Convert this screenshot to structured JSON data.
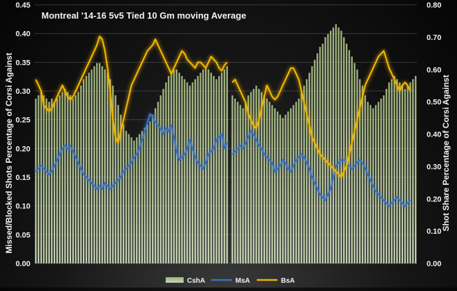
{
  "chart_data": {
    "type": "bar+line",
    "title": "Montreal '14-16 5v5 Tied 10 Gm moving Average",
    "ylabel_left": "Missed/Blocked Shots Percentage of Corsi Against",
    "ylabel_right": "Shot Share Percentage of Corsi Against",
    "ylim_left": [
      0,
      0.45
    ],
    "ylim_right": [
      0,
      0.8
    ],
    "yticks_left": [
      "0.00",
      "0.05",
      "0.10",
      "0.15",
      "0.20",
      "0.25",
      "0.30",
      "0.35",
      "0.40",
      "0.45"
    ],
    "yticks_right": [
      "0.00",
      "0.10",
      "0.20",
      "0.30",
      "0.40",
      "0.50",
      "0.60",
      "0.70",
      "0.80"
    ],
    "grid": true,
    "legend_position": "bottom",
    "season_break_index": 73,
    "series": [
      {
        "name": "CshA",
        "type": "bar",
        "axis": "right",
        "color": "#a9c48a",
        "values": [
          0.51,
          0.52,
          0.53,
          0.52,
          0.51,
          0.5,
          0.51,
          0.5,
          0.51,
          0.52,
          0.53,
          0.54,
          0.53,
          0.52,
          0.51,
          0.52,
          0.53,
          0.55,
          0.57,
          0.58,
          0.59,
          0.6,
          0.61,
          0.62,
          0.62,
          0.61,
          0.6,
          0.59,
          0.57,
          0.55,
          0.52,
          0.49,
          0.46,
          0.43,
          0.41,
          0.4,
          0.39,
          0.38,
          0.39,
          0.4,
          0.41,
          0.42,
          0.43,
          0.44,
          0.46,
          0.48,
          0.5,
          0.52,
          0.54,
          0.56,
          0.58,
          0.59,
          0.6,
          0.6,
          0.59,
          0.58,
          0.57,
          0.56,
          0.55,
          0.56,
          0.57,
          0.58,
          0.59,
          0.6,
          0.61,
          0.6,
          0.59,
          0.58,
          0.57,
          0.58,
          0.59,
          0.6,
          0.61,
          0.52,
          0.51,
          0.5,
          0.49,
          0.48,
          0.5,
          0.52,
          0.53,
          0.54,
          0.55,
          0.54,
          0.53,
          0.52,
          0.51,
          0.5,
          0.49,
          0.48,
          0.47,
          0.46,
          0.45,
          0.46,
          0.47,
          0.48,
          0.49,
          0.5,
          0.51,
          0.53,
          0.55,
          0.57,
          0.59,
          0.61,
          0.63,
          0.65,
          0.67,
          0.68,
          0.7,
          0.71,
          0.72,
          0.73,
          0.74,
          0.73,
          0.72,
          0.7,
          0.68,
          0.66,
          0.64,
          0.62,
          0.6,
          0.57,
          0.55,
          0.52,
          0.5,
          0.49,
          0.48,
          0.49,
          0.5,
          0.51,
          0.52,
          0.54,
          0.56,
          0.57,
          0.58,
          0.57,
          0.56,
          0.55,
          0.54,
          0.55,
          0.56,
          0.57,
          0.58
        ]
      },
      {
        "name": "MsA",
        "type": "line",
        "axis": "left",
        "color": "#3a72c4",
        "values": [
          0.16,
          0.165,
          0.17,
          0.165,
          0.16,
          0.155,
          0.16,
          0.17,
          0.18,
          0.19,
          0.2,
          0.205,
          0.2,
          0.205,
          0.195,
          0.185,
          0.175,
          0.165,
          0.155,
          0.15,
          0.145,
          0.14,
          0.135,
          0.13,
          0.135,
          0.13,
          0.14,
          0.135,
          0.13,
          0.135,
          0.14,
          0.145,
          0.15,
          0.16,
          0.165,
          0.17,
          0.175,
          0.185,
          0.19,
          0.2,
          0.215,
          0.23,
          0.245,
          0.26,
          0.255,
          0.245,
          0.24,
          0.235,
          0.225,
          0.235,
          0.23,
          0.24,
          0.22,
          0.195,
          0.18,
          0.185,
          0.19,
          0.2,
          0.215,
          0.2,
          0.185,
          0.175,
          0.17,
          0.165,
          0.175,
          0.19,
          0.195,
          0.2,
          0.215,
          0.22,
          0.225,
          0.2,
          0.21,
          0.19,
          0.195,
          0.2,
          0.205,
          0.2,
          0.21,
          0.22,
          0.23,
          0.225,
          0.215,
          0.205,
          0.2,
          0.19,
          0.185,
          0.18,
          0.175,
          0.16,
          0.165,
          0.17,
          0.18,
          0.175,
          0.165,
          0.16,
          0.17,
          0.18,
          0.185,
          0.19,
          0.185,
          0.175,
          0.165,
          0.15,
          0.14,
          0.13,
          0.12,
          0.115,
          0.11,
          0.12,
          0.13,
          0.15,
          0.17,
          0.175,
          0.18,
          0.18,
          0.175,
          0.17,
          0.165,
          0.17,
          0.175,
          0.18,
          0.175,
          0.165,
          0.155,
          0.145,
          0.135,
          0.125,
          0.12,
          0.115,
          0.11,
          0.105,
          0.1,
          0.105,
          0.11,
          0.115,
          0.11,
          0.105,
          0.1,
          0.105,
          0.11
        ]
      },
      {
        "name": "BsA",
        "type": "line",
        "axis": "left",
        "color": "#f0b400",
        "values": [
          0.32,
          0.31,
          0.3,
          0.275,
          0.27,
          0.265,
          0.27,
          0.28,
          0.29,
          0.3,
          0.31,
          0.3,
          0.29,
          0.285,
          0.29,
          0.3,
          0.31,
          0.32,
          0.33,
          0.34,
          0.35,
          0.36,
          0.37,
          0.38,
          0.395,
          0.39,
          0.37,
          0.34,
          0.3,
          0.25,
          0.22,
          0.21,
          0.23,
          0.25,
          0.27,
          0.29,
          0.31,
          0.32,
          0.33,
          0.34,
          0.35,
          0.36,
          0.37,
          0.375,
          0.38,
          0.39,
          0.38,
          0.37,
          0.36,
          0.35,
          0.34,
          0.33,
          0.34,
          0.35,
          0.36,
          0.37,
          0.365,
          0.355,
          0.35,
          0.345,
          0.34,
          0.35,
          0.35,
          0.345,
          0.34,
          0.35,
          0.36,
          0.355,
          0.35,
          0.34,
          0.335,
          0.345,
          0.35,
          0.315,
          0.32,
          0.31,
          0.3,
          0.29,
          0.28,
          0.26,
          0.25,
          0.24,
          0.235,
          0.25,
          0.27,
          0.29,
          0.31,
          0.3,
          0.29,
          0.285,
          0.29,
          0.3,
          0.31,
          0.32,
          0.33,
          0.34,
          0.34,
          0.33,
          0.32,
          0.3,
          0.28,
          0.26,
          0.24,
          0.22,
          0.21,
          0.2,
          0.19,
          0.185,
          0.18,
          0.175,
          0.17,
          0.165,
          0.16,
          0.155,
          0.15,
          0.16,
          0.17,
          0.19,
          0.21,
          0.23,
          0.25,
          0.27,
          0.29,
          0.31,
          0.32,
          0.33,
          0.34,
          0.35,
          0.36,
          0.365,
          0.37,
          0.355,
          0.34,
          0.33,
          0.32,
          0.31,
          0.3,
          0.31,
          0.315,
          0.31,
          0.3
        ]
      }
    ]
  }
}
